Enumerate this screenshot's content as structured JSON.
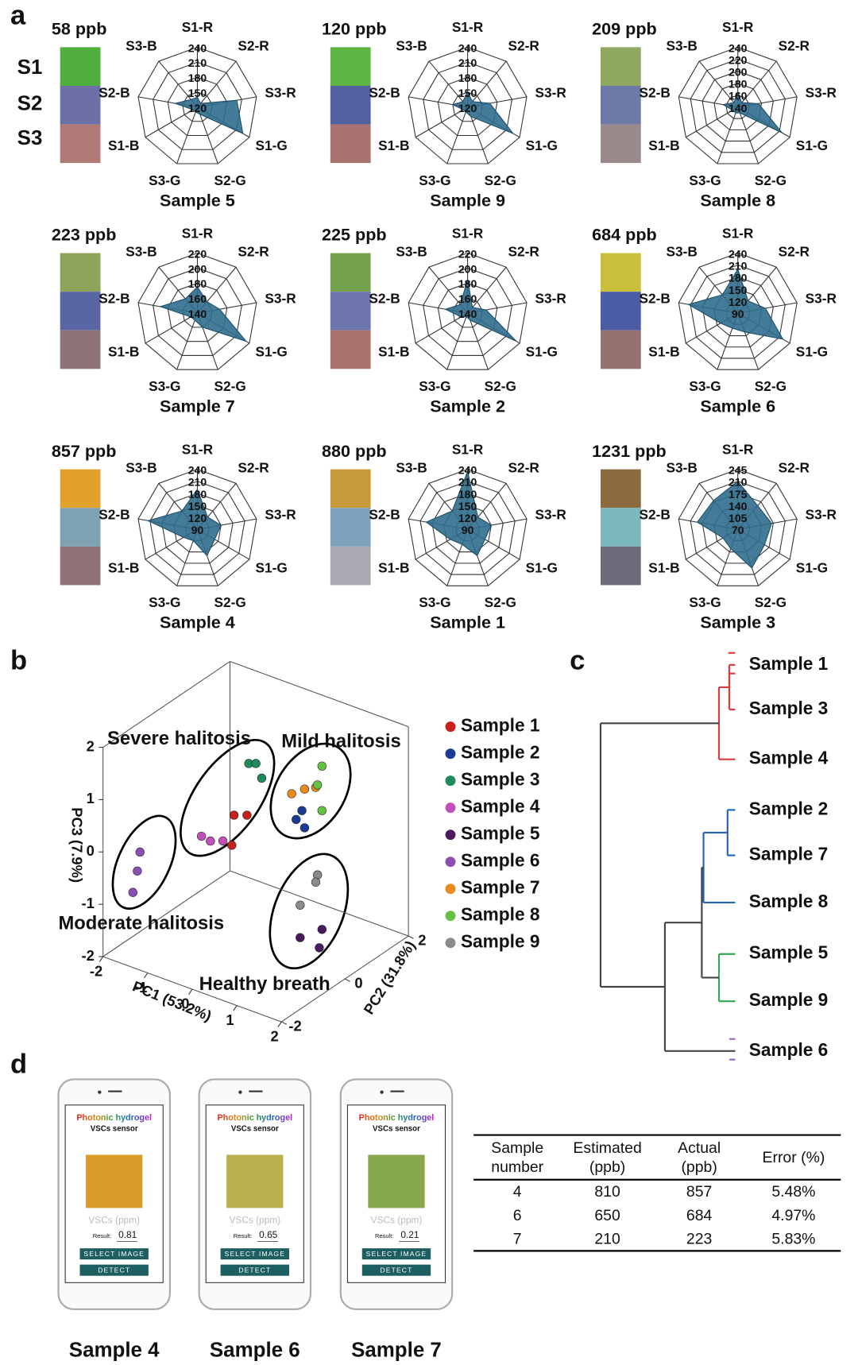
{
  "panel_labels": [
    "a",
    "b",
    "c",
    "d"
  ],
  "row_labels": [
    "S1",
    "S2",
    "S3"
  ],
  "chart_data": [
    {
      "type": "radar",
      "title": "Sample 5",
      "concentration": "58 ppb",
      "axes": [
        "S1-R",
        "S2-R",
        "S3-R",
        "S1-G",
        "S2-G",
        "S3-G",
        "S1-B",
        "S2-B",
        "S3-B"
      ],
      "rlim": [
        120,
        240
      ],
      "rticks": [
        120,
        150,
        180,
        210,
        240
      ],
      "values": [
        140,
        130,
        200,
        225,
        135,
        130,
        130,
        165,
        140
      ],
      "color": "#2f6d8d",
      "swatches": [
        "#4fae3c",
        "#6c70a6",
        "#b27a77"
      ]
    },
    {
      "type": "radar",
      "title": "Sample 9",
      "concentration": "120 ppb",
      "axes": [
        "S1-R",
        "S2-R",
        "S3-R",
        "S1-G",
        "S2-G",
        "S3-G",
        "S1-B",
        "S2-B",
        "S3-B"
      ],
      "rlim": [
        120,
        240
      ],
      "rticks": [
        120,
        150,
        180,
        210,
        240
      ],
      "values": [
        150,
        135,
        165,
        225,
        140,
        130,
        130,
        150,
        135
      ],
      "color": "#2f6d8d",
      "swatches": [
        "#5fb542",
        "#51609e",
        "#a9716f"
      ]
    },
    {
      "type": "radar",
      "title": "Sample 8",
      "concentration": "209 ppb",
      "axes": [
        "S1-R",
        "S2-R",
        "S3-R",
        "S1-G",
        "S2-G",
        "S3-G",
        "S1-B",
        "S2-B",
        "S3-B"
      ],
      "rlim": [
        140,
        240
      ],
      "rticks": [
        140,
        160,
        180,
        200,
        220,
        240
      ],
      "values": [
        165,
        150,
        175,
        225,
        150,
        150,
        150,
        165,
        150
      ],
      "color": "#2f6d8d",
      "swatches": [
        "#8fa860",
        "#6d7aa8",
        "#9a8a8c"
      ]
    },
    {
      "type": "radar",
      "title": "Sample 7",
      "concentration": "223 ppb",
      "axes": [
        "S1-R",
        "S2-R",
        "S3-R",
        "S1-G",
        "S2-G",
        "S3-G",
        "S1-B",
        "S2-B",
        "S3-B"
      ],
      "rlim": [
        140,
        220
      ],
      "rticks": [
        140,
        160,
        180,
        200,
        220
      ],
      "values": [
        175,
        160,
        170,
        215,
        160,
        150,
        150,
        190,
        165
      ],
      "color": "#2f6d8d",
      "swatches": [
        "#8ea45a",
        "#5867a4",
        "#8e7476"
      ]
    },
    {
      "type": "radar",
      "title": "Sample 2",
      "concentration": "225 ppb",
      "axes": [
        "S1-R",
        "S2-R",
        "S3-R",
        "S1-G",
        "S2-G",
        "S3-G",
        "S1-B",
        "S2-B",
        "S3-B"
      ],
      "rlim": [
        140,
        220
      ],
      "rticks": [
        140,
        160,
        180,
        200,
        220
      ],
      "values": [
        185,
        150,
        165,
        215,
        150,
        145,
        150,
        170,
        155
      ],
      "color": "#2f6d8d",
      "swatches": [
        "#74a24c",
        "#6e74ae",
        "#a9736e"
      ]
    },
    {
      "type": "radar",
      "title": "Sample 6",
      "concentration": "684 ppb",
      "axes": [
        "S1-R",
        "S2-R",
        "S3-R",
        "S1-G",
        "S2-G",
        "S3-G",
        "S1-B",
        "S2-B",
        "S3-B"
      ],
      "rlim": [
        90,
        240
      ],
      "rticks": [
        90,
        120,
        150,
        180,
        210,
        240
      ],
      "values": [
        200,
        130,
        160,
        220,
        140,
        130,
        140,
        215,
        150
      ],
      "color": "#2f6d8d",
      "swatches": [
        "#c9bf3a",
        "#4a5ca3",
        "#95716f"
      ]
    },
    {
      "type": "radar",
      "title": "Sample 4",
      "concentration": "857 ppb",
      "axes": [
        "S1-R",
        "S2-R",
        "S3-R",
        "S1-G",
        "S2-G",
        "S3-G",
        "S1-B",
        "S2-B",
        "S3-B"
      ],
      "rlim": [
        90,
        240
      ],
      "rticks": [
        90,
        120,
        150,
        180,
        210,
        240
      ],
      "values": [
        190,
        130,
        150,
        140,
        160,
        120,
        130,
        215,
        150
      ],
      "color": "#2f6d8d",
      "swatches": [
        "#e1a12a",
        "#7fa2b2",
        "#8f7378"
      ]
    },
    {
      "type": "radar",
      "title": "Sample 1",
      "concentration": "880 ppb",
      "axes": [
        "S1-R",
        "S2-R",
        "S3-R",
        "S1-G",
        "S2-G",
        "S3-G",
        "S1-B",
        "S2-B",
        "S3-B"
      ],
      "rlim": [
        90,
        240
      ],
      "rticks": [
        90,
        120,
        150,
        180,
        210,
        240
      ],
      "values": [
        235,
        130,
        150,
        140,
        160,
        130,
        140,
        195,
        150
      ],
      "color": "#2f6d8d",
      "swatches": [
        "#c99a3a",
        "#7fa3bd",
        "#a9a9b2"
      ]
    },
    {
      "type": "radar",
      "title": "Sample 3",
      "concentration": "1231 ppb",
      "axes": [
        "S1-R",
        "S2-R",
        "S3-R",
        "S1-G",
        "S2-G",
        "S3-G",
        "S1-B",
        "S2-B",
        "S3-B"
      ],
      "rlim": [
        70,
        245
      ],
      "rticks": [
        70,
        105,
        140,
        175,
        210,
        245
      ],
      "values": [
        210,
        160,
        170,
        160,
        190,
        130,
        120,
        190,
        180
      ],
      "color": "#2f6d8d",
      "swatches": [
        "#8a6a3e",
        "#7cb7bd",
        "#6e6a7a"
      ]
    },
    {
      "type": "scatter3d",
      "xlabel": "PC1 (53.2%)",
      "ylabel": "PC2 (31.8%)",
      "zlabel": "PC3 (7.9%)",
      "xlim": [
        -2,
        2
      ],
      "ylim": [
        -2,
        2
      ],
      "zlim": [
        -2,
        2
      ],
      "xticks": [
        -2,
        -1,
        0,
        1,
        2
      ],
      "yticks": [
        -2,
        0,
        2
      ],
      "zticks": [
        -2,
        -1,
        0,
        1,
        2
      ],
      "annotations": [
        "Severe halitosis",
        "Mild halitosis",
        "Moderate halitosis",
        "Healthy breath"
      ],
      "series": [
        {
          "name": "Sample 1",
          "color": "#c8201c",
          "x": [
            -0.13,
            0.16,
            -0.18
          ],
          "y": [
            -0.5,
            -0.5,
            -0.5
          ],
          "z": [
            0.67,
            0.76,
            0.08
          ]
        },
        {
          "name": "Sample 2",
          "color": "#1c3a94",
          "x": [
            0.55,
            0.68,
            0.74
          ],
          "y": [
            0.5,
            0.5,
            0.5
          ],
          "z": [
            0.39,
            0.6,
            0.29
          ]
        },
        {
          "name": "Sample 3",
          "color": "#1f8a5b",
          "x": [
            0.2,
            0.36,
            0.49
          ],
          "y": [
            -0.5,
            -0.5,
            -0.5
          ],
          "z": [
            1.76,
            1.81,
            1.57
          ]
        },
        {
          "name": "Sample 4",
          "color": "#c34fba",
          "x": [
            -0.86,
            -0.66,
            -0.38
          ],
          "y": [
            -0.5,
            -0.5,
            -0.5
          ],
          "z": [
            0.04,
            0.01,
            0.1
          ]
        },
        {
          "name": "Sample 5",
          "color": "#4a1a5c",
          "x": [
            0.64,
            1.13,
            1.07
          ],
          "y": [
            0.5,
            0.5,
            0.5
          ],
          "z": [
            -1.84,
            -1.53,
            -1.9
          ]
        },
        {
          "name": "Sample 6",
          "color": "#8b4fb3",
          "x": [
            -1.74,
            -1.8,
            -1.9
          ],
          "y": [
            -1.2,
            -1.2,
            -1.2
          ],
          "z": [
            -0.25,
            -0.63,
            -1.07
          ]
        },
        {
          "name": "Sample 7",
          "color": "#e98b1c",
          "x": [
            0.45,
            0.74,
            0.99
          ],
          "y": [
            0.5,
            0.5,
            0.5
          ],
          "z": [
            0.85,
            1.03,
            1.14
          ]
        },
        {
          "name": "Sample 8",
          "color": "#67c041",
          "x": [
            1.13,
            1.03,
            1.13
          ],
          "y": [
            0.5,
            0.5,
            0.5
          ],
          "z": [
            1.59,
            1.2,
            0.74
          ]
        },
        {
          "name": "Sample 9",
          "color": "#8a8a8a",
          "x": [
            1.03,
            0.99,
            0.64
          ],
          "y": [
            0.5,
            0.5,
            0.5
          ],
          "z": [
            -0.52,
            -0.67,
            -1.22
          ]
        }
      ]
    },
    {
      "type": "dendrogram",
      "leaves": [
        "Sample 1",
        "Sample 3",
        "Sample 4",
        "Sample 2",
        "Sample 7",
        "Sample 8",
        "Sample 5",
        "Sample 9",
        "Sample 6"
      ],
      "leaf_colors": [
        "#e03a3a",
        "#e03a3a",
        "#e03a3a",
        "#2563b8",
        "#2563b8",
        "#2563b8",
        "#35a852",
        "#35a852",
        "#9a66c0"
      ]
    }
  ],
  "phones": [
    {
      "app_title": "Photonic hydrogel",
      "subtitle": "VSCs sensor",
      "unit_label": "VSCs (ppm)",
      "result_label": "Result:",
      "result": "0.81",
      "buttons": [
        "SELECT IMAGE",
        "DETECT"
      ],
      "caption": "Sample 4",
      "image_color": "#dc9c2a"
    },
    {
      "app_title": "Photonic hydrogel",
      "subtitle": "VSCs sensor",
      "unit_label": "VSCs (ppm)",
      "result_label": "Result:",
      "result": "0.65",
      "buttons": [
        "SELECT IMAGE",
        "DETECT"
      ],
      "caption": "Sample 6",
      "image_color": "#b9b04e"
    },
    {
      "app_title": "Photonic hydrogel",
      "subtitle": "VSCs sensor",
      "unit_label": "VSCs (ppm)",
      "result_label": "Result:",
      "result": "0.21",
      "buttons": [
        "SELECT IMAGE",
        "DETECT"
      ],
      "caption": "Sample 7",
      "image_color": "#86a84a"
    }
  ],
  "table": {
    "header": [
      [
        "Sample",
        "number"
      ],
      [
        "Estimated",
        "(ppb)"
      ],
      [
        "Actual",
        "(ppb)"
      ],
      [
        "Error (%)"
      ]
    ],
    "rows": [
      [
        "4",
        "810",
        "857",
        "5.48%"
      ],
      [
        "6",
        "650",
        "684",
        "4.97%"
      ],
      [
        "7",
        "210",
        "223",
        "5.83%"
      ]
    ]
  }
}
